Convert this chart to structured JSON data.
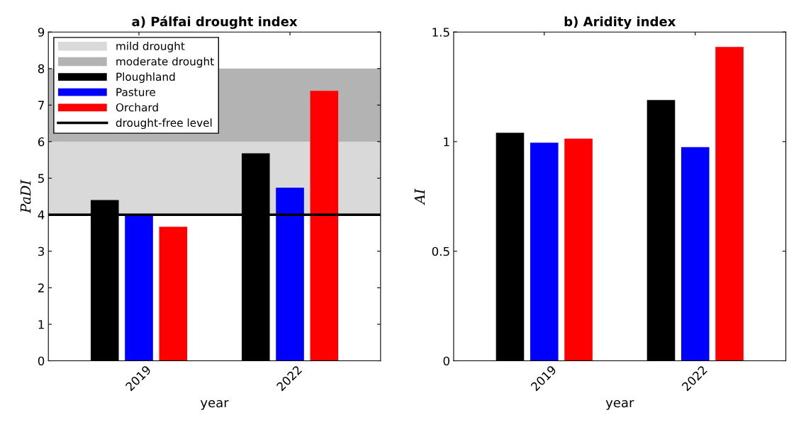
{
  "chart_data": [
    {
      "type": "bar",
      "title": "a) Pálfai drought index",
      "xlabel": "year",
      "ylabel": "PaDI",
      "categories": [
        "2019",
        "2022"
      ],
      "series": [
        {
          "name": "Ploughland",
          "color": "#000000",
          "values": [
            4.4,
            5.68
          ]
        },
        {
          "name": "Pasture",
          "color": "#0000ff",
          "values": [
            4.02,
            4.74
          ]
        },
        {
          "name": "Orchard",
          "color": "#ff0000",
          "values": [
            3.67,
            7.39
          ]
        }
      ],
      "ylim": [
        0,
        9
      ],
      "yticks": [
        0,
        1,
        2,
        3,
        4,
        5,
        6,
        7,
        8,
        9
      ],
      "bands": [
        {
          "axis": "y",
          "from": 4,
          "to": 6,
          "label": "mild drought",
          "color": "#d9d9d9"
        },
        {
          "axis": "y",
          "from": 6,
          "to": 8,
          "label": "moderate drought",
          "color": "#b3b3b3"
        }
      ],
      "ref_lines": [
        {
          "axis": "y",
          "value": 4,
          "label": "drought-free level",
          "color": "#000000"
        }
      ],
      "legend": "top left",
      "grid": false
    },
    {
      "type": "bar",
      "title": "b) Aridity index",
      "xlabel": "year",
      "ylabel": "AI",
      "categories": [
        "2019",
        "2022"
      ],
      "series": [
        {
          "color": "#000000",
          "values": [
            1.04,
            1.19
          ]
        },
        {
          "color": "#0000ff",
          "values": [
            0.995,
            0.975
          ]
        },
        {
          "color": "#ff0000",
          "values": [
            1.014,
            1.432
          ]
        }
      ],
      "ylim": [
        0,
        1.5
      ],
      "yticks": [
        0,
        0.5,
        1,
        1.5
      ],
      "grid": false
    }
  ]
}
